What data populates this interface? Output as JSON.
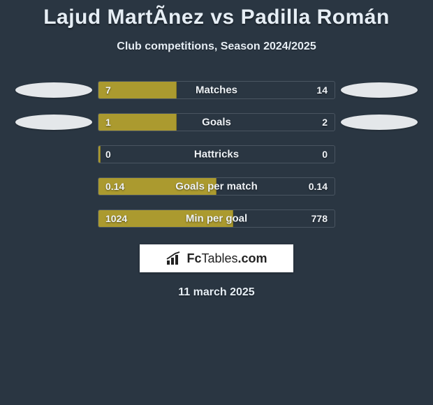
{
  "title": "Lajud MartÃ­nez vs Padilla Román",
  "subtitle": "Club competitions, Season 2024/2025",
  "date": "11 march 2025",
  "logo": {
    "text_bold": "Fc",
    "text_light": "Tables",
    "text_suffix": ".com"
  },
  "chart": {
    "bar_fill_color": "#ab9a2f",
    "track_border_color": "rgba(170,180,190,0.25)",
    "background_color": "#2a3642",
    "text_color": "#e6eef5",
    "ellipse_color": "#e4e7ea",
    "label_fontsize": 15,
    "value_fontsize": 14
  },
  "rows": [
    {
      "label": "Matches",
      "left": "7",
      "right": "14",
      "fill_pct": 33,
      "show_ellipses": true
    },
    {
      "label": "Goals",
      "left": "1",
      "right": "2",
      "fill_pct": 33,
      "show_ellipses": true
    },
    {
      "label": "Hattricks",
      "left": "0",
      "right": "0",
      "fill_pct": 1,
      "show_ellipses": false
    },
    {
      "label": "Goals per match",
      "left": "0.14",
      "right": "0.14",
      "fill_pct": 50,
      "show_ellipses": false
    },
    {
      "label": "Min per goal",
      "left": "1024",
      "right": "778",
      "fill_pct": 57,
      "show_ellipses": false
    }
  ]
}
